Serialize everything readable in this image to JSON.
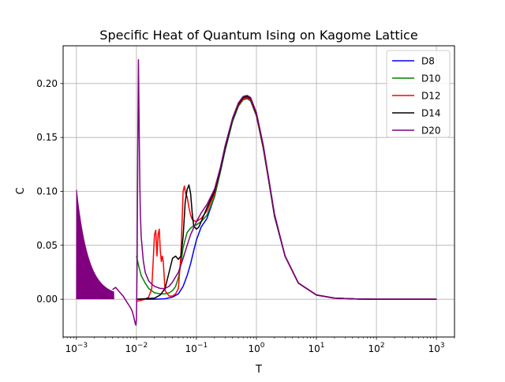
{
  "chart_data": {
    "type": "line",
    "title": "Specific Heat of Quantum Ising on Kagome Lattice",
    "xlabel": "T",
    "ylabel": "C",
    "xscale": "log",
    "xlim": [
      0.0006,
      2000
    ],
    "ylim": [
      -0.035,
      0.235
    ],
    "grid": true,
    "legend_position": "top-right",
    "x_ticks": [
      {
        "value": 0.001,
        "base": "10",
        "exp": "−3"
      },
      {
        "value": 0.01,
        "base": "10",
        "exp": "−2"
      },
      {
        "value": 0.1,
        "base": "10",
        "exp": "−1"
      },
      {
        "value": 1,
        "base": "10",
        "exp": "0"
      },
      {
        "value": 10,
        "base": "10",
        "exp": "1"
      },
      {
        "value": 100,
        "base": "10",
        "exp": "2"
      },
      {
        "value": 1000,
        "base": "10",
        "exp": "3"
      }
    ],
    "y_ticks": [
      {
        "value": 0.0,
        "label": "0.00"
      },
      {
        "value": 0.05,
        "label": "0.05"
      },
      {
        "value": 0.1,
        "label": "0.10"
      },
      {
        "value": 0.15,
        "label": "0.15"
      },
      {
        "value": 0.2,
        "label": "0.20"
      }
    ],
    "series": [
      {
        "name": "D8",
        "color": "#0000ff",
        "x": [
          0.01,
          0.02,
          0.03,
          0.04,
          0.05,
          0.06,
          0.07,
          0.08,
          0.09,
          0.1,
          0.12,
          0.15,
          0.2,
          0.25,
          0.3,
          0.4,
          0.5,
          0.6,
          0.7,
          0.8,
          1.0,
          1.3,
          1.6,
          2.0,
          3.0,
          5.0,
          10,
          20,
          50,
          100,
          1000
        ],
        "y": [
          0.0,
          0.0,
          0.0005,
          0.002,
          0.005,
          0.012,
          0.022,
          0.033,
          0.045,
          0.055,
          0.067,
          0.075,
          0.095,
          0.118,
          0.138,
          0.165,
          0.179,
          0.185,
          0.186,
          0.184,
          0.17,
          0.14,
          0.11,
          0.077,
          0.04,
          0.015,
          0.004,
          0.001,
          0.0002,
          0.0,
          0.0
        ]
      },
      {
        "name": "D10",
        "color": "#008000",
        "x": [
          0.01,
          0.011,
          0.012,
          0.014,
          0.016,
          0.02,
          0.025,
          0.03,
          0.035,
          0.04,
          0.045,
          0.05,
          0.055,
          0.06,
          0.07,
          0.08,
          0.09,
          0.1,
          0.12,
          0.15,
          0.2,
          0.25,
          0.3,
          0.4,
          0.5,
          0.6,
          0.7,
          0.8,
          1.0,
          1.3,
          1.6,
          2.0,
          3.0,
          5.0,
          10,
          20,
          50,
          100,
          1000
        ],
        "y": [
          0.04,
          0.03,
          0.022,
          0.015,
          0.01,
          0.006,
          0.005,
          0.005,
          0.006,
          0.008,
          0.012,
          0.02,
          0.032,
          0.048,
          0.062,
          0.066,
          0.068,
          0.069,
          0.072,
          0.078,
          0.095,
          0.118,
          0.138,
          0.165,
          0.179,
          0.185,
          0.186,
          0.184,
          0.17,
          0.14,
          0.11,
          0.077,
          0.04,
          0.015,
          0.004,
          0.001,
          0.0002,
          0.0,
          0.0
        ]
      },
      {
        "name": "D12",
        "color": "#ff0000",
        "x": [
          0.01,
          0.012,
          0.014,
          0.016,
          0.018,
          0.019,
          0.02,
          0.021,
          0.022,
          0.023,
          0.024,
          0.025,
          0.026,
          0.027,
          0.028,
          0.03,
          0.035,
          0.04,
          0.045,
          0.05,
          0.055,
          0.06,
          0.063,
          0.066,
          0.07,
          0.075,
          0.08,
          0.085,
          0.09,
          0.1,
          0.12,
          0.15,
          0.2,
          0.25,
          0.3,
          0.4,
          0.5,
          0.6,
          0.7,
          0.8,
          1.0,
          1.3,
          1.6,
          2.0,
          3.0,
          5.0,
          10,
          20,
          50,
          100,
          1000
        ],
        "y": [
          -0.002,
          -0.001,
          0.0,
          0.002,
          0.01,
          0.035,
          0.06,
          0.064,
          0.04,
          0.06,
          0.065,
          0.045,
          0.035,
          0.04,
          0.035,
          0.008,
          0.003,
          0.003,
          0.005,
          0.01,
          0.04,
          0.1,
          0.105,
          0.098,
          0.095,
          0.085,
          0.078,
          0.074,
          0.073,
          0.072,
          0.075,
          0.082,
          0.098,
          0.12,
          0.14,
          0.167,
          0.18,
          0.186,
          0.187,
          0.185,
          0.171,
          0.141,
          0.111,
          0.078,
          0.04,
          0.015,
          0.004,
          0.001,
          0.0002,
          0.0,
          0.0
        ]
      },
      {
        "name": "D14",
        "color": "#000000",
        "x": [
          0.01,
          0.02,
          0.025,
          0.03,
          0.035,
          0.04,
          0.045,
          0.05,
          0.055,
          0.06,
          0.065,
          0.07,
          0.075,
          0.08,
          0.085,
          0.09,
          0.1,
          0.11,
          0.12,
          0.15,
          0.2,
          0.25,
          0.3,
          0.4,
          0.5,
          0.6,
          0.7,
          0.8,
          1.0,
          1.3,
          1.6,
          2.0,
          3.0,
          5.0,
          10,
          20,
          50,
          100,
          1000
        ],
        "y": [
          0.0,
          0.001,
          0.004,
          0.01,
          0.025,
          0.038,
          0.04,
          0.037,
          0.04,
          0.058,
          0.09,
          0.102,
          0.106,
          0.098,
          0.08,
          0.068,
          0.065,
          0.067,
          0.072,
          0.085,
          0.1,
          0.12,
          0.14,
          0.167,
          0.181,
          0.187,
          0.188,
          0.186,
          0.172,
          0.142,
          0.112,
          0.078,
          0.04,
          0.015,
          0.004,
          0.001,
          0.0002,
          0.0,
          0.0
        ]
      },
      {
        "name": "D20",
        "color": "#800080",
        "x": [
          0.004,
          0.0045,
          0.005,
          0.006,
          0.007,
          0.008,
          0.0085,
          0.009,
          0.0095,
          0.0098,
          0.01,
          0.0103,
          0.0105,
          0.0108,
          0.011,
          0.0113,
          0.0116,
          0.012,
          0.013,
          0.014,
          0.016,
          0.018,
          0.02,
          0.025,
          0.03,
          0.035,
          0.04,
          0.05,
          0.06,
          0.07,
          0.08,
          0.1,
          0.12,
          0.15,
          0.2,
          0.25,
          0.3,
          0.4,
          0.5,
          0.6,
          0.7,
          0.8,
          1.0,
          1.3,
          1.6,
          2.0,
          3.0,
          5.0,
          10,
          20,
          50,
          100,
          1000
        ],
        "y": [
          0.009,
          0.011,
          0.008,
          0.003,
          -0.003,
          -0.008,
          -0.011,
          -0.016,
          -0.022,
          -0.024,
          -0.018,
          0.04,
          0.13,
          0.222,
          0.18,
          0.12,
          0.08,
          0.058,
          0.036,
          0.025,
          0.017,
          0.014,
          0.012,
          0.01,
          0.01,
          0.012,
          0.016,
          0.025,
          0.038,
          0.05,
          0.06,
          0.072,
          0.08,
          0.088,
          0.102,
          0.122,
          0.142,
          0.168,
          0.182,
          0.188,
          0.189,
          0.187,
          0.173,
          0.143,
          0.112,
          0.079,
          0.04,
          0.015,
          0.004,
          0.001,
          0.0002,
          0.0,
          0.0
        ]
      }
    ]
  }
}
